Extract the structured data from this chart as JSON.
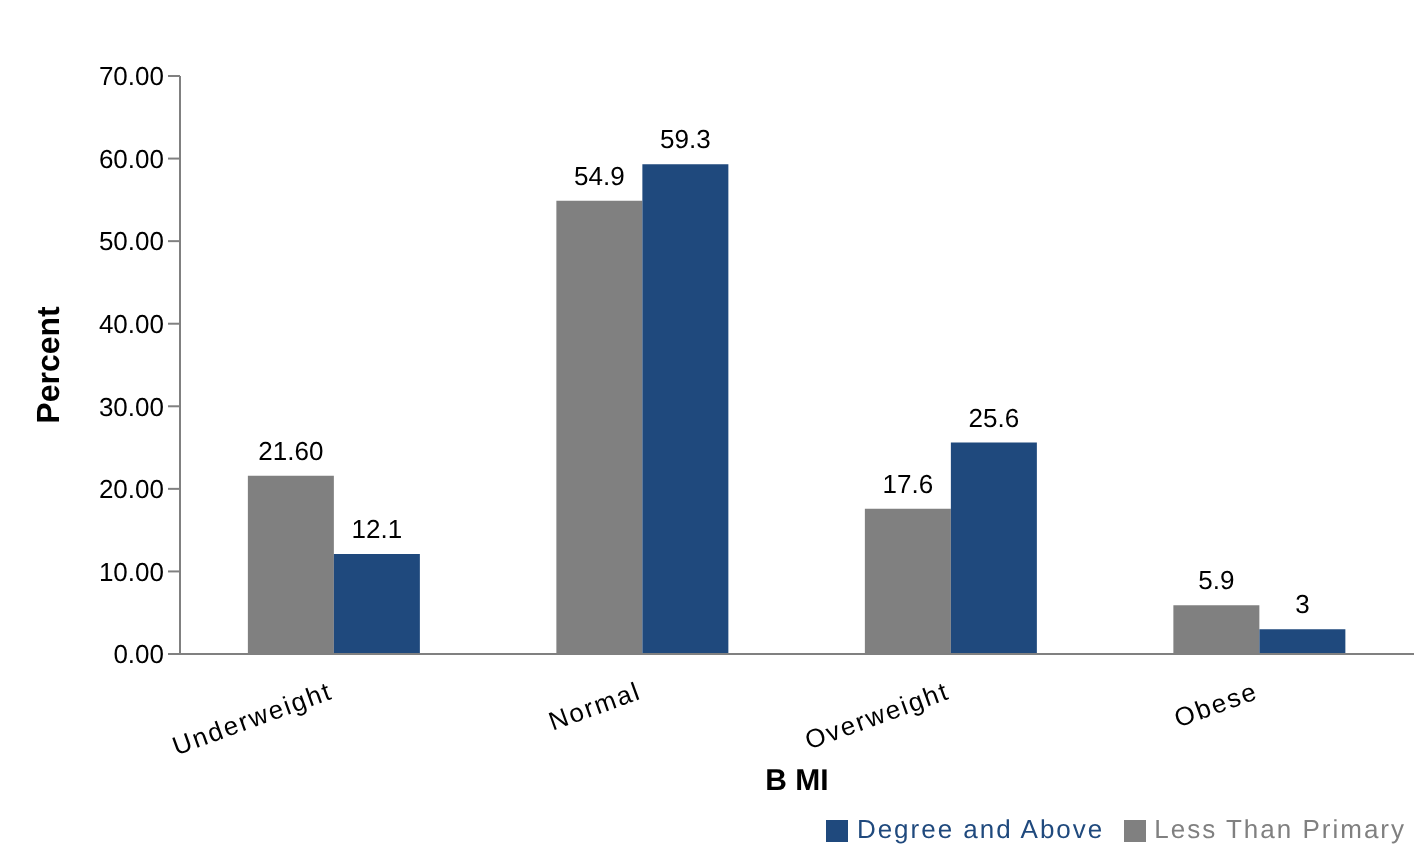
{
  "chart_data": {
    "type": "bar",
    "xlabel": "B MI",
    "ylabel": "Percent",
    "categories": [
      "Underweight",
      "Normal",
      "Overweight",
      "Obese"
    ],
    "series": [
      {
        "name": "Less Than Primary",
        "color": "#808080",
        "values": [
          21.6,
          54.9,
          17.6,
          5.9
        ],
        "value_labels": [
          "21.60",
          "54.9",
          "17.6",
          "5.9"
        ]
      },
      {
        "name": "Degree and Above",
        "color": "#1f497d",
        "values": [
          12.1,
          59.3,
          25.6,
          3
        ],
        "value_labels": [
          "12.1",
          "59.3",
          "25.6",
          "3"
        ]
      }
    ],
    "ylim": [
      0,
      70
    ],
    "yticks": [
      {
        "value": 0,
        "label": "0.00"
      },
      {
        "value": 10,
        "label": "10.00"
      },
      {
        "value": 20,
        "label": "20.00"
      },
      {
        "value": 30,
        "label": "30.00"
      },
      {
        "value": 40,
        "label": "40.00"
      },
      {
        "value": 50,
        "label": "50.00"
      },
      {
        "value": 60,
        "label": "60.00"
      },
      {
        "value": 70,
        "label": "70.00"
      }
    ],
    "grid": false,
    "legend": "bottom right"
  }
}
